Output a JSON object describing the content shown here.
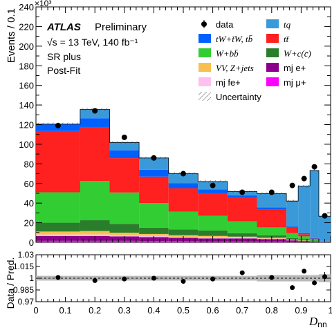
{
  "chart_data": [
    {
      "type": "bar",
      "panel": "main",
      "stacked": true,
      "ylabel": "Events / 0.1",
      "y_multiplier": "×10³",
      "ylim": [
        0,
        240
      ],
      "y_ticks": [
        0,
        10,
        20,
        30,
        40,
        50,
        60,
        70,
        80,
        90,
        100,
        110,
        120,
        130,
        140,
        150,
        160,
        170,
        180,
        190,
        200,
        210,
        220,
        230,
        240
      ],
      "y_tick_step_labeled": 20,
      "xlim": [
        0,
        1
      ],
      "bin_edges": [
        0,
        0.15,
        0.25,
        0.35,
        0.45,
        0.55,
        0.65,
        0.75,
        0.85,
        0.89,
        0.93,
        0.96,
        1.0
      ],
      "series": [
        {
          "name": "mj μ+",
          "color": "#ff00ff",
          "values": [
            1.5,
            1.5,
            1.5,
            1.3,
            1.2,
            1.0,
            1.0,
            0.8,
            0.5,
            0.3,
            0.2,
            0.1
          ]
        },
        {
          "name": "mj e+",
          "color": "#8b008b",
          "values": [
            5,
            5,
            4.5,
            4,
            3.5,
            3,
            3,
            2.5,
            1.5,
            1,
            0.5,
            0.3
          ]
        },
        {
          "name": "mj fe+",
          "color": "#ffc0f0",
          "values": [
            1.5,
            1.5,
            1.3,
            1.2,
            1.0,
            1.0,
            0.8,
            0.6,
            0.3,
            0.2,
            0.1,
            0.05
          ]
        },
        {
          "name": "VV, Z+jets",
          "color": "#f8c050",
          "values": [
            3,
            3.5,
            2.5,
            2,
            1.5,
            1.5,
            1,
            0.8,
            0.5,
            0.4,
            0.2,
            0.1
          ]
        },
        {
          "name": "W+c(c̄)",
          "color": "#2a7d2a",
          "values": [
            9,
            11,
            9,
            6.5,
            6,
            5.5,
            3.5,
            2.5,
            1.5,
            1.2,
            0.7,
            0.3
          ]
        },
        {
          "name": "W+bb̄",
          "color": "#32cd32",
          "values": [
            31,
            40,
            32,
            25,
            18,
            15,
            12,
            8,
            5,
            3,
            1.5,
            0.5
          ]
        },
        {
          "name": "tt̄",
          "color": "#ff2020",
          "values": [
            62.5,
            55,
            35,
            27,
            24,
            23,
            24.5,
            18,
            5.8,
            2.2,
            0.6,
            0.05
          ]
        },
        {
          "name": "tW+t̄W, tb̄",
          "color": "#0060ff",
          "values": [
            7,
            9,
            8,
            7,
            5,
            4,
            2,
            2.5,
            1,
            1,
            0.5,
            0.2
          ]
        },
        {
          "name": "tq",
          "color": "#3a9ad9",
          "values": [
            0,
            9,
            8,
            12,
            10,
            8,
            4,
            14,
            26,
            48,
            69,
            25
          ]
        }
      ],
      "data_points": {
        "name": "data",
        "x": [
          0.075,
          0.2,
          0.3,
          0.4,
          0.5,
          0.6,
          0.7,
          0.8,
          0.87,
          0.91,
          0.945,
          0.98
        ],
        "y": [
          119,
          134,
          107,
          86,
          70,
          58,
          51,
          51,
          58,
          65,
          77,
          27
        ]
      },
      "uncertainty": {
        "name": "Uncertainty"
      },
      "annotations": {
        "atlas": "ATLAS",
        "status": "Preliminary",
        "energy": "√s = 13 TeV, 140 fb⁻¹",
        "region": "SR plus",
        "fit": "Post-Fit"
      },
      "legend_placement": "top-right"
    },
    {
      "type": "scatter",
      "panel": "ratio",
      "ylabel": "Data / Pred.",
      "ylim": [
        0.97,
        1.03
      ],
      "y_ticks": [
        0.97,
        0.985,
        1,
        1.015,
        1.03
      ],
      "y_tick_labels": [
        "0.97",
        "0.985",
        "1",
        "1.015",
        "1.03"
      ],
      "xlabel": "D",
      "xlabel_sub": "nn",
      "xlim": [
        0,
        1
      ],
      "x_ticks": [
        0,
        0.1,
        0.2,
        0.3,
        0.4,
        0.5,
        0.6,
        0.7,
        0.8,
        0.9,
        1
      ],
      "x_tick_labels": [
        "0",
        "0.1",
        "0.2",
        "0.3",
        "0.4",
        "0.5",
        "0.6",
        "0.7",
        "0.8",
        "0.9",
        "1"
      ],
      "reference_line": 1,
      "x": [
        0.075,
        0.2,
        0.3,
        0.4,
        0.5,
        0.6,
        0.7,
        0.8,
        0.87,
        0.91,
        0.945,
        0.98
      ],
      "y": [
        1.001,
        0.997,
        0.999,
        1.0,
        0.996,
        0.999,
        1.007,
        1.001,
        0.988,
        1.009,
        0.994,
        1.002
      ],
      "yerr": [
        0.002,
        0.002,
        0.002,
        0.002,
        0.002,
        0.002,
        0.002,
        0.002,
        0.003,
        0.003,
        0.003,
        0.006
      ],
      "band_halfwidth": [
        0.003,
        0.003,
        0.003,
        0.003,
        0.003,
        0.003,
        0.003,
        0.004,
        0.004,
        0.004,
        0.004,
        0.005
      ]
    }
  ]
}
